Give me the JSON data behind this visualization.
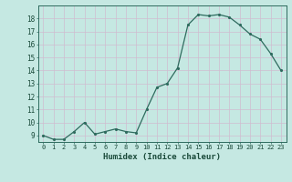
{
  "x": [
    0,
    1,
    2,
    3,
    4,
    5,
    6,
    7,
    8,
    9,
    10,
    11,
    12,
    13,
    14,
    15,
    16,
    17,
    18,
    19,
    20,
    21,
    22,
    23
  ],
  "y": [
    9.0,
    8.7,
    8.7,
    9.3,
    10.0,
    9.1,
    9.3,
    9.5,
    9.3,
    9.2,
    11.0,
    12.7,
    13.0,
    14.2,
    17.5,
    18.3,
    18.2,
    18.3,
    18.1,
    17.5,
    16.8,
    16.4,
    15.3,
    14.0
  ],
  "xlabel": "Humidex (Indice chaleur)",
  "line_color": "#2e6b5e",
  "marker_color": "#2e6b5e",
  "bg_color": "#c5e8e2",
  "grid_color": "#d0bcd0",
  "ylim_min": 8.5,
  "ylim_max": 19.0,
  "xlim_min": -0.5,
  "xlim_max": 23.5,
  "yticks": [
    9,
    10,
    11,
    12,
    13,
    14,
    15,
    16,
    17,
    18
  ],
  "xticks": [
    0,
    1,
    2,
    3,
    4,
    5,
    6,
    7,
    8,
    9,
    10,
    11,
    12,
    13,
    14,
    15,
    16,
    17,
    18,
    19,
    20,
    21,
    22,
    23
  ]
}
